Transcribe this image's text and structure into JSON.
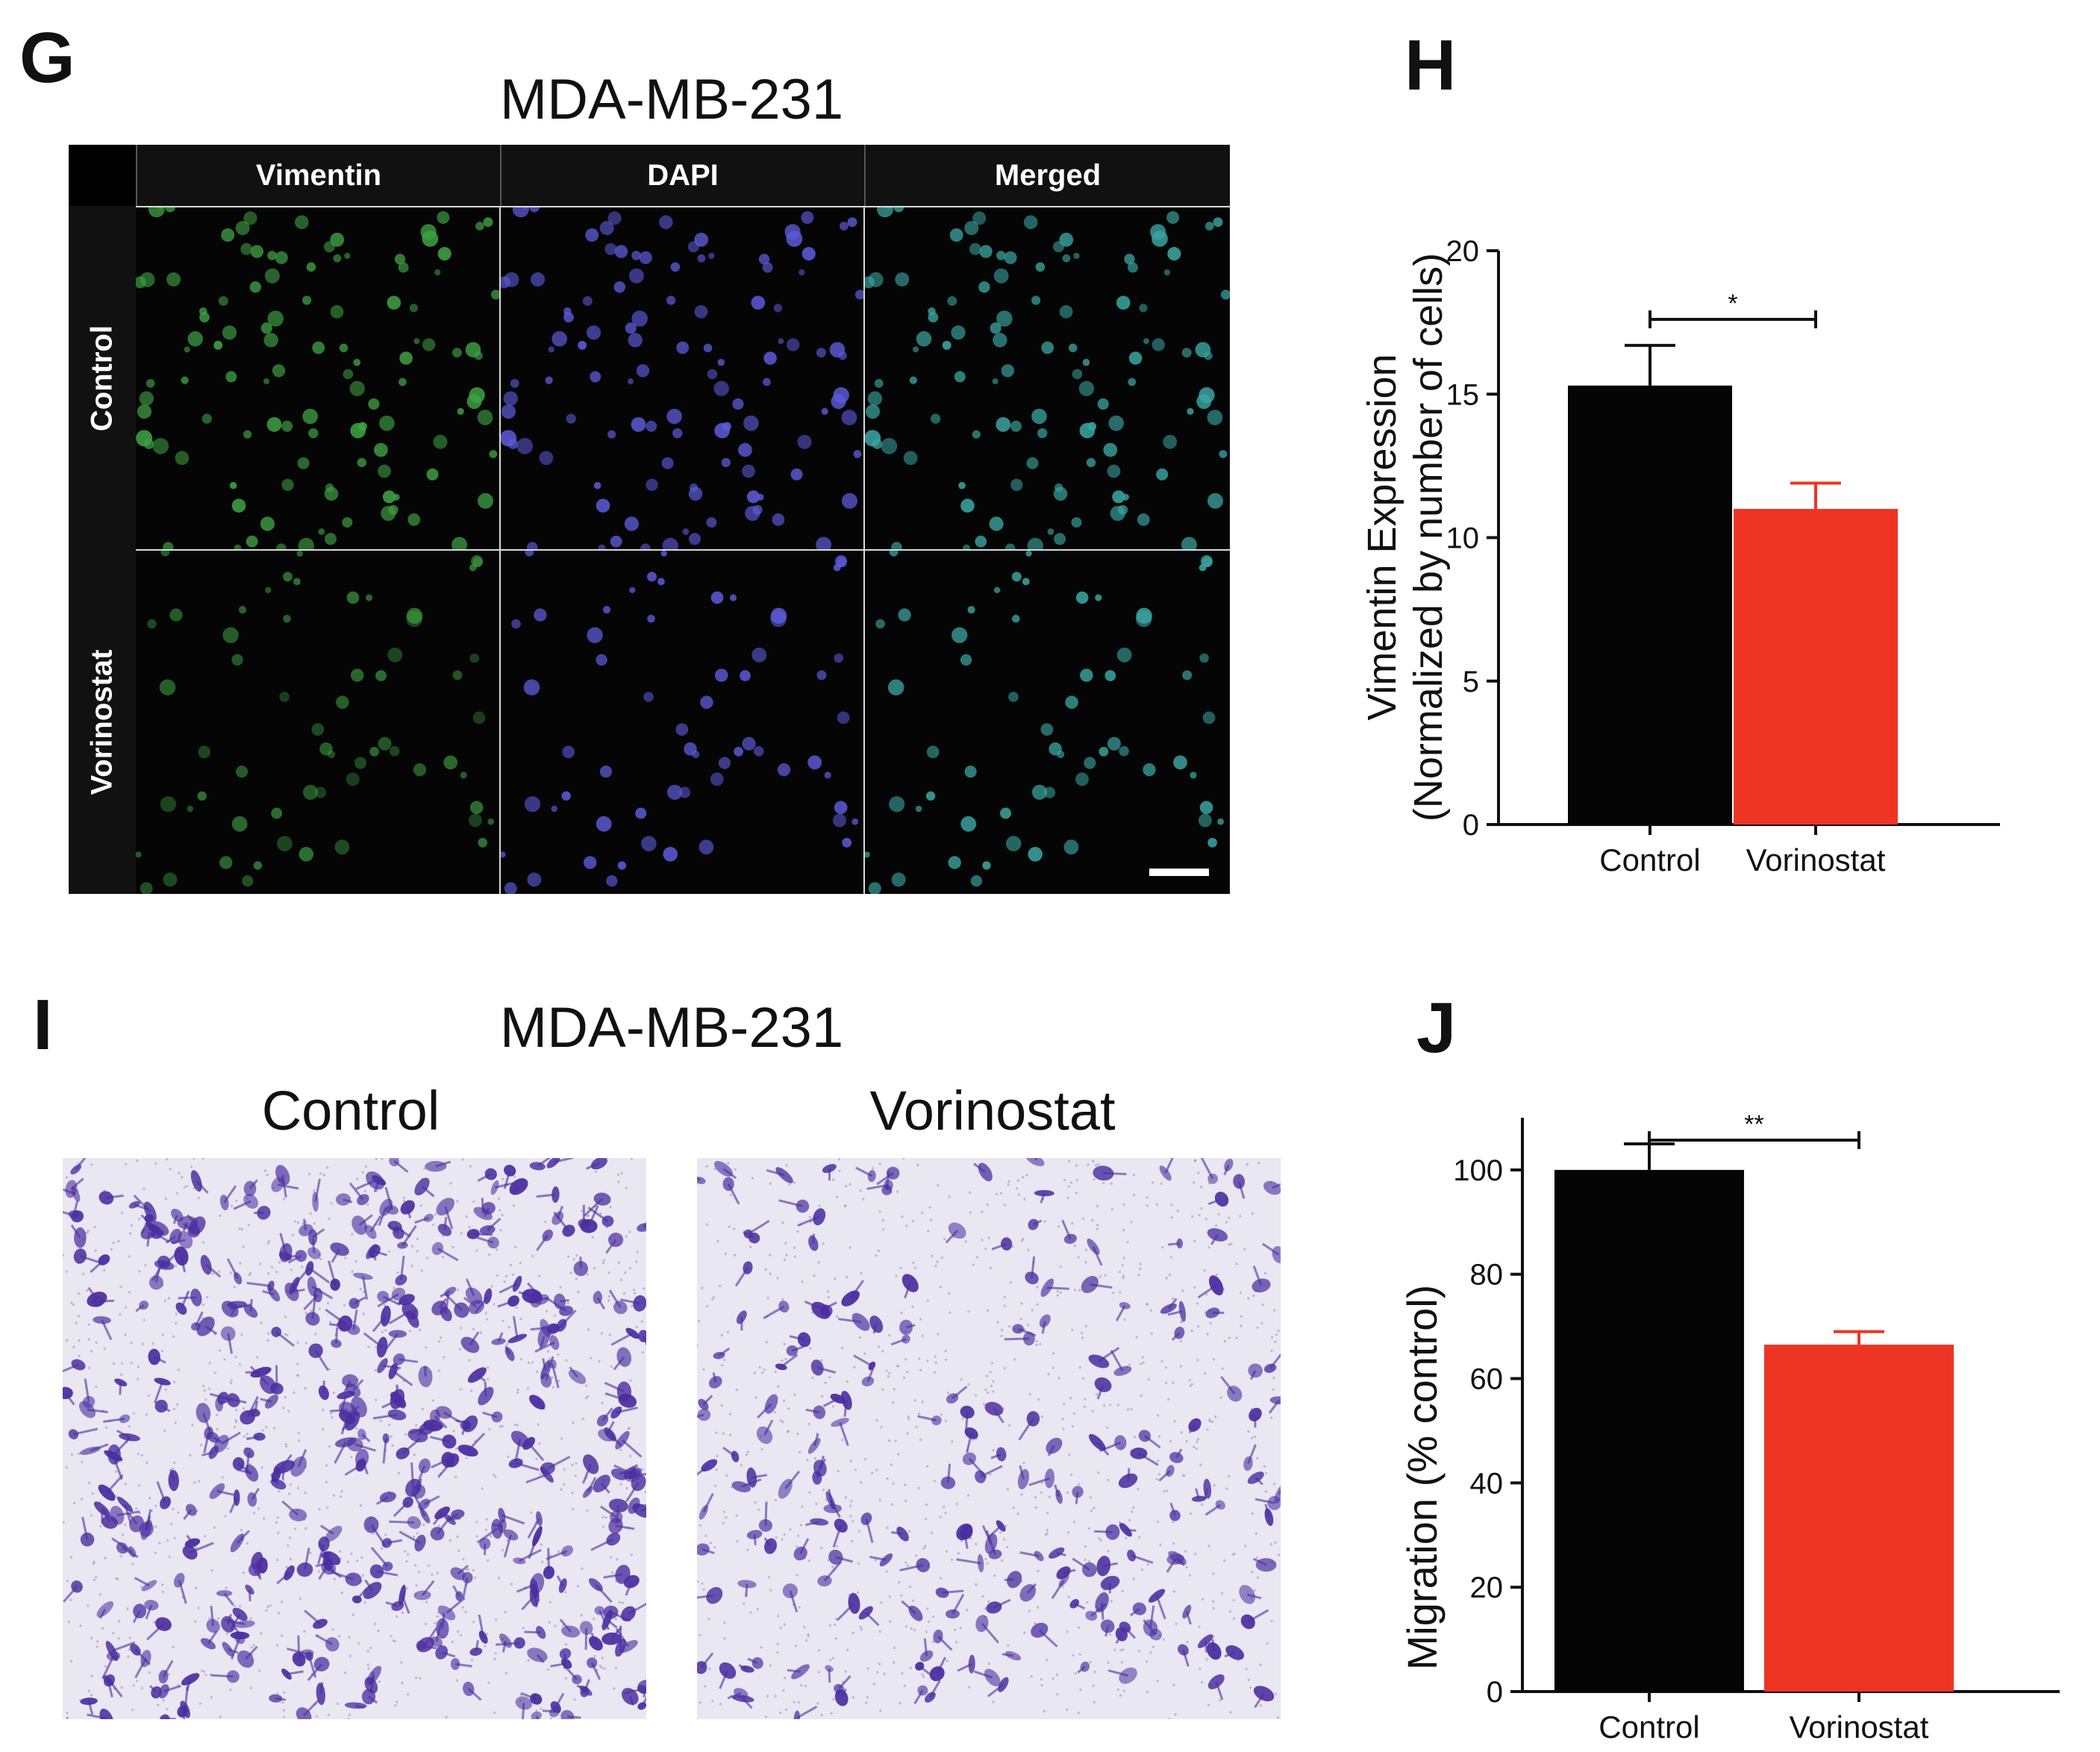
{
  "panels": {
    "g": {
      "letter": "G",
      "title": "MDA-MB-231",
      "columns": [
        "Vimentin",
        "DAPI",
        "Merged"
      ],
      "rows": [
        "Control",
        "Vorinostat"
      ]
    },
    "h": {
      "letter": "H"
    },
    "i": {
      "letter": "I",
      "title": "MDA-MB-231",
      "conditions": [
        "Control",
        "Vorinostat"
      ]
    },
    "j": {
      "letter": "J"
    }
  },
  "colors": {
    "control_bar": "#050505",
    "vorinostat_bar": "#ee3524",
    "vimentin_stain": "#3fa044",
    "dapi_stain": "#5a5ad6",
    "merged_stain": "#3aa3a0",
    "crystal_violet": "#4a2ea0"
  },
  "chart_data": [
    {
      "type": "bar",
      "panel": "H",
      "categories": [
        "Control",
        "Vorinostat"
      ],
      "values": [
        15.3,
        11.0
      ],
      "errors": [
        1.4,
        0.9
      ],
      "ylabel_line1": "Vimentin Expression",
      "ylabel_line2": "(Normalized by number of cells)",
      "ylim": [
        0,
        20
      ],
      "yticks": [
        0,
        5,
        10,
        15,
        20
      ],
      "significance": "*"
    },
    {
      "type": "bar",
      "panel": "J",
      "categories": [
        "Control",
        "Vorinostat"
      ],
      "values": [
        100,
        66.5
      ],
      "errors": [
        5,
        2.5
      ],
      "ylabel": "Migration (% control)",
      "ylim": [
        0,
        110
      ],
      "yticks": [
        0,
        20,
        40,
        60,
        80,
        100
      ],
      "significance": "**"
    }
  ]
}
